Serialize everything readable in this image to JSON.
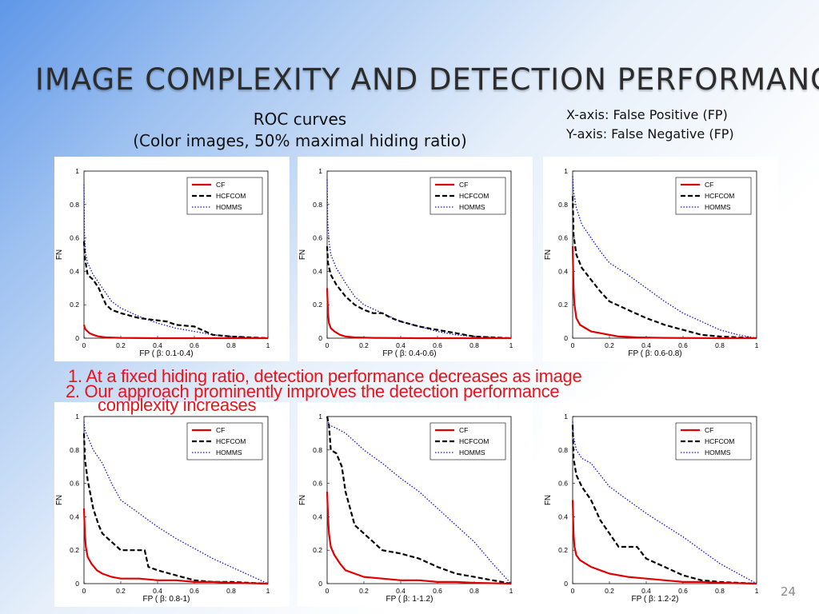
{
  "slide": {
    "title": "IMAGE COMPLEXITY AND DETECTION PERFORMANCE",
    "roc_heading_line1": "ROC curves",
    "roc_heading_line2": "(Color images, 50% maximal hiding ratio)",
    "xaxis_info": "X-axis: False Positive (FP)",
    "yaxis_info": "Y-axis: False Negative (FP)",
    "finding1_line1": "1. At a fixed hiding ratio, detection performance decreases as image",
    "finding1_line2": "complexity increases",
    "finding2": "2. Our approach prominently improves the detection performance",
    "page_number": "24"
  },
  "colors": {
    "CF": "#e00000",
    "HCFCOM": "#000000",
    "HOMMS": "#1010d0",
    "finding_text": "#e8141c"
  },
  "chart_data": [
    {
      "type": "line",
      "xlabel": "FP ( β: 0.1-0.4)",
      "ylabel": "FN",
      "xlim": [
        0,
        1
      ],
      "ylim": [
        0,
        1
      ],
      "xticks": [
        "0",
        "0.2",
        "0.4",
        "0.6",
        "0.8",
        "1"
      ],
      "yticks": [
        "0",
        "0.2",
        "0.4",
        "0.6",
        "0.8",
        "1"
      ],
      "legend": "top-right",
      "series": [
        {
          "name": "CF",
          "style": "solid",
          "x": [
            0,
            0.005,
            0.01,
            0.02,
            0.03,
            0.05,
            0.08,
            0.12,
            0.2,
            0.4,
            0.7,
            1
          ],
          "y": [
            0.08,
            0.06,
            0.05,
            0.04,
            0.03,
            0.02,
            0.01,
            0.005,
            0.002,
            0,
            0,
            0
          ]
        },
        {
          "name": "HCFCOM",
          "style": "dashed",
          "x": [
            0,
            0.005,
            0.02,
            0.05,
            0.08,
            0.1,
            0.12,
            0.15,
            0.2,
            0.3,
            0.45,
            0.5,
            0.6,
            0.7,
            0.8,
            0.9,
            1
          ],
          "y": [
            0.58,
            0.48,
            0.38,
            0.35,
            0.3,
            0.25,
            0.2,
            0.17,
            0.15,
            0.12,
            0.1,
            0.08,
            0.07,
            0.02,
            0.01,
            0.005,
            0
          ]
        },
        {
          "name": "HOMMS",
          "style": "dotted",
          "x": [
            0,
            0.003,
            0.01,
            0.02,
            0.05,
            0.1,
            0.15,
            0.2,
            0.3,
            0.4,
            0.5,
            0.6,
            0.7,
            0.8,
            0.9,
            1
          ],
          "y": [
            0.92,
            0.6,
            0.5,
            0.45,
            0.38,
            0.3,
            0.22,
            0.18,
            0.13,
            0.09,
            0.06,
            0.04,
            0.02,
            0.01,
            0.005,
            0
          ]
        }
      ]
    },
    {
      "type": "line",
      "xlabel": "FP ( β: 0.4-0.6)",
      "ylabel": "FN",
      "xlim": [
        0,
        1
      ],
      "ylim": [
        0,
        1
      ],
      "xticks": [
        "0",
        "0.2",
        "0.4",
        "0.6",
        "0.8",
        "1"
      ],
      "yticks": [
        "0",
        "0.2",
        "0.4",
        "0.6",
        "0.8",
        "1"
      ],
      "legend": "top-right",
      "series": [
        {
          "name": "CF",
          "style": "solid",
          "x": [
            0,
            0.005,
            0.01,
            0.02,
            0.04,
            0.07,
            0.1,
            0.15,
            0.25,
            0.5,
            0.8,
            1
          ],
          "y": [
            0.3,
            0.15,
            0.09,
            0.06,
            0.04,
            0.02,
            0.01,
            0.005,
            0.002,
            0,
            0,
            0
          ]
        },
        {
          "name": "HCFCOM",
          "style": "dashed",
          "x": [
            0,
            0.005,
            0.02,
            0.05,
            0.1,
            0.15,
            0.2,
            0.25,
            0.3,
            0.35,
            0.4,
            0.5,
            0.6,
            0.7,
            0.8,
            0.9,
            1
          ],
          "y": [
            0.55,
            0.45,
            0.38,
            0.32,
            0.25,
            0.2,
            0.17,
            0.15,
            0.15,
            0.12,
            0.1,
            0.07,
            0.05,
            0.03,
            0.01,
            0.005,
            0
          ]
        },
        {
          "name": "HOMMS",
          "style": "dotted",
          "x": [
            0,
            0.003,
            0.01,
            0.02,
            0.05,
            0.1,
            0.15,
            0.2,
            0.3,
            0.4,
            0.5,
            0.6,
            0.7,
            0.8,
            0.9,
            1
          ],
          "y": [
            0.95,
            0.7,
            0.58,
            0.5,
            0.42,
            0.33,
            0.25,
            0.2,
            0.15,
            0.1,
            0.07,
            0.04,
            0.02,
            0.01,
            0.005,
            0
          ]
        }
      ]
    },
    {
      "type": "line",
      "xlabel": "FP ( β: 0.6-0.8)",
      "ylabel": "FN",
      "xlim": [
        0,
        1
      ],
      "ylim": [
        0,
        1
      ],
      "xticks": [
        "0",
        "0.2",
        "0.4",
        "0.6",
        "0.8",
        "1"
      ],
      "yticks": [
        "0",
        "0.2",
        "0.4",
        "0.6",
        "0.8",
        "1"
      ],
      "legend": "top-right",
      "series": [
        {
          "name": "CF",
          "style": "solid",
          "x": [
            0,
            0.005,
            0.01,
            0.02,
            0.04,
            0.07,
            0.1,
            0.15,
            0.2,
            0.25,
            0.35,
            0.5,
            0.8,
            1
          ],
          "y": [
            0.55,
            0.3,
            0.2,
            0.12,
            0.08,
            0.06,
            0.04,
            0.03,
            0.02,
            0.01,
            0.005,
            0.002,
            0,
            0
          ]
        },
        {
          "name": "HCFCOM",
          "style": "dashed",
          "x": [
            0,
            0.005,
            0.02,
            0.05,
            0.1,
            0.15,
            0.2,
            0.3,
            0.4,
            0.5,
            0.6,
            0.7,
            0.8,
            0.9,
            1
          ],
          "y": [
            0.85,
            0.62,
            0.5,
            0.42,
            0.35,
            0.28,
            0.22,
            0.17,
            0.12,
            0.08,
            0.05,
            0.02,
            0.01,
            0.005,
            0
          ]
        },
        {
          "name": "HOMMS",
          "style": "dotted",
          "x": [
            0,
            0.005,
            0.02,
            0.05,
            0.1,
            0.15,
            0.2,
            0.3,
            0.4,
            0.5,
            0.6,
            0.7,
            0.8,
            0.9,
            1
          ],
          "y": [
            0.97,
            0.88,
            0.78,
            0.68,
            0.6,
            0.52,
            0.45,
            0.38,
            0.3,
            0.22,
            0.15,
            0.1,
            0.05,
            0.02,
            0
          ]
        }
      ]
    },
    {
      "type": "line",
      "xlabel": "FP ( β: 0.8-1)",
      "ylabel": "FN",
      "xlim": [
        0,
        1
      ],
      "ylim": [
        0,
        1
      ],
      "xticks": [
        "0",
        "0.2",
        "0.4",
        "0.6",
        "0.8",
        "1"
      ],
      "yticks": [
        "0",
        "0.2",
        "0.4",
        "0.6",
        "0.8",
        "1"
      ],
      "legend": "top-right",
      "series": [
        {
          "name": "CF",
          "style": "solid",
          "x": [
            0,
            0.005,
            0.01,
            0.02,
            0.04,
            0.07,
            0.1,
            0.15,
            0.2,
            0.3,
            0.4,
            0.5,
            0.6,
            0.7,
            0.8,
            1
          ],
          "y": [
            0.45,
            0.3,
            0.22,
            0.16,
            0.12,
            0.08,
            0.06,
            0.04,
            0.03,
            0.03,
            0.02,
            0.02,
            0.01,
            0.01,
            0.005,
            0
          ]
        },
        {
          "name": "HCFCOM",
          "style": "dashed",
          "x": [
            0,
            0.005,
            0.02,
            0.05,
            0.08,
            0.1,
            0.15,
            0.2,
            0.25,
            0.3,
            0.33,
            0.35,
            0.4,
            0.5,
            0.6,
            0.7,
            0.8,
            0.9,
            1
          ],
          "y": [
            0.9,
            0.75,
            0.62,
            0.45,
            0.35,
            0.3,
            0.25,
            0.2,
            0.2,
            0.2,
            0.2,
            0.1,
            0.08,
            0.05,
            0.02,
            0.01,
            0.01,
            0.005,
            0
          ]
        },
        {
          "name": "HOMMS",
          "style": "dotted",
          "x": [
            0,
            0.005,
            0.02,
            0.05,
            0.1,
            0.15,
            0.2,
            0.3,
            0.4,
            0.5,
            0.6,
            0.7,
            0.8,
            0.9,
            1
          ],
          "y": [
            0.97,
            0.92,
            0.88,
            0.8,
            0.72,
            0.6,
            0.5,
            0.42,
            0.34,
            0.27,
            0.21,
            0.15,
            0.1,
            0.05,
            0
          ]
        }
      ]
    },
    {
      "type": "line",
      "xlabel": "FP ( β: 1-1.2)",
      "ylabel": "FN",
      "xlim": [
        0,
        1
      ],
      "ylim": [
        0,
        1
      ],
      "xticks": [
        "0",
        "0.2",
        "0.4",
        "0.6",
        "0.8",
        "1"
      ],
      "yticks": [
        "0",
        "0.2",
        "0.4",
        "0.6",
        "0.8",
        "1"
      ],
      "legend": "top-right",
      "series": [
        {
          "name": "CF",
          "style": "solid",
          "x": [
            0,
            0.005,
            0.01,
            0.02,
            0.04,
            0.07,
            0.1,
            0.15,
            0.2,
            0.3,
            0.4,
            0.5,
            0.6,
            0.7,
            0.8,
            1
          ],
          "y": [
            0.55,
            0.4,
            0.3,
            0.22,
            0.17,
            0.12,
            0.08,
            0.06,
            0.04,
            0.03,
            0.02,
            0.02,
            0.01,
            0.01,
            0.005,
            0
          ]
        },
        {
          "name": "HCFCOM",
          "style": "dashed",
          "x": [
            0,
            0.01,
            0.02,
            0.05,
            0.08,
            0.1,
            0.15,
            0.2,
            0.3,
            0.4,
            0.5,
            0.6,
            0.7,
            0.8,
            0.9,
            1
          ],
          "y": [
            1.0,
            0.95,
            0.8,
            0.78,
            0.7,
            0.55,
            0.35,
            0.3,
            0.2,
            0.18,
            0.15,
            0.1,
            0.06,
            0.04,
            0.02,
            0
          ]
        },
        {
          "name": "HOMMS",
          "style": "dotted",
          "x": [
            0,
            0.01,
            0.05,
            0.1,
            0.15,
            0.2,
            0.3,
            0.4,
            0.5,
            0.6,
            0.7,
            0.8,
            0.9,
            1
          ],
          "y": [
            1.0,
            0.95,
            0.93,
            0.9,
            0.85,
            0.8,
            0.72,
            0.63,
            0.55,
            0.45,
            0.35,
            0.25,
            0.12,
            0
          ]
        }
      ]
    },
    {
      "type": "line",
      "xlabel": "FP ( β: 1.2-2)",
      "ylabel": "FN",
      "xlim": [
        0,
        1
      ],
      "ylim": [
        0,
        1
      ],
      "xticks": [
        "0",
        "0.2",
        "0.4",
        "0.6",
        "0.8",
        "1"
      ],
      "yticks": [
        "0",
        "0.2",
        "0.4",
        "0.6",
        "0.8",
        "1"
      ],
      "legend": "top-right",
      "series": [
        {
          "name": "CF",
          "style": "solid",
          "x": [
            0,
            0.005,
            0.01,
            0.02,
            0.04,
            0.07,
            0.1,
            0.15,
            0.2,
            0.3,
            0.4,
            0.5,
            0.6,
            0.7,
            0.8,
            1
          ],
          "y": [
            0.5,
            0.3,
            0.22,
            0.17,
            0.14,
            0.12,
            0.1,
            0.08,
            0.06,
            0.04,
            0.03,
            0.02,
            0.01,
            0.01,
            0.005,
            0
          ]
        },
        {
          "name": "HCFCOM",
          "style": "dashed",
          "x": [
            0,
            0.005,
            0.02,
            0.05,
            0.1,
            0.15,
            0.2,
            0.25,
            0.3,
            0.35,
            0.4,
            0.5,
            0.6,
            0.7,
            0.8,
            0.9,
            1
          ],
          "y": [
            0.95,
            0.75,
            0.65,
            0.58,
            0.5,
            0.38,
            0.3,
            0.22,
            0.22,
            0.22,
            0.15,
            0.1,
            0.05,
            0.02,
            0.01,
            0.005,
            0
          ]
        },
        {
          "name": "HOMMS",
          "style": "dotted",
          "x": [
            0,
            0.005,
            0.02,
            0.05,
            0.1,
            0.15,
            0.2,
            0.3,
            0.4,
            0.5,
            0.6,
            0.7,
            0.8,
            0.9,
            1
          ],
          "y": [
            0.97,
            0.88,
            0.8,
            0.75,
            0.72,
            0.65,
            0.58,
            0.5,
            0.42,
            0.35,
            0.28,
            0.2,
            0.12,
            0.06,
            0
          ]
        }
      ]
    }
  ]
}
